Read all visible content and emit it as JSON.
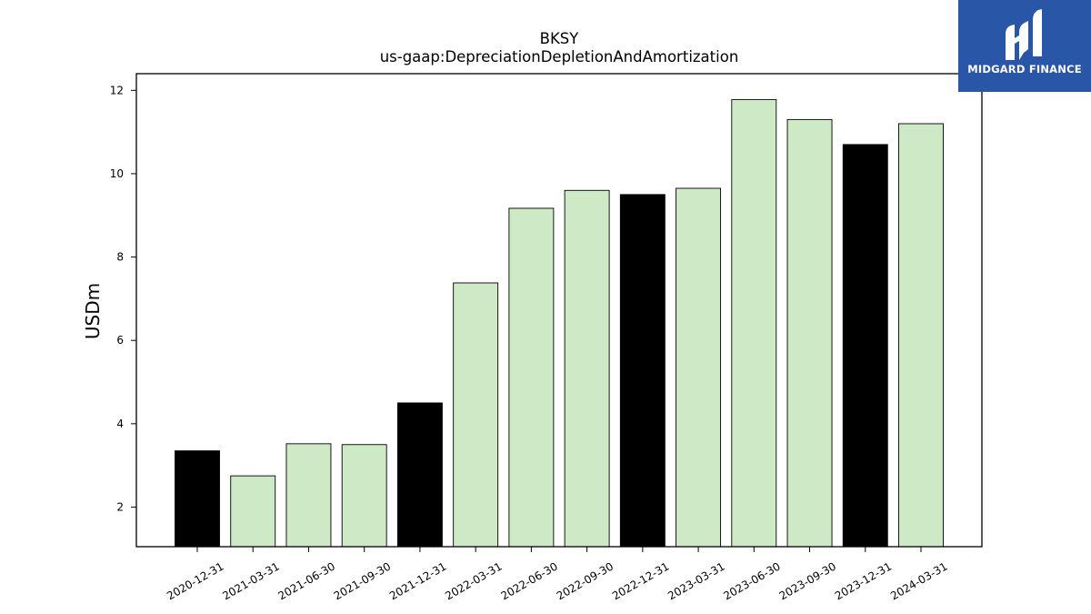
{
  "chart_data": {
    "type": "bar",
    "title": "BKSY",
    "subtitle": "us-gaap:DepreciationDepletionAndAmortization",
    "xlabel": "",
    "ylabel": "USDm",
    "categories": [
      "2020-12-31",
      "2021-03-31",
      "2021-06-30",
      "2021-09-30",
      "2021-12-31",
      "2022-03-31",
      "2022-06-30",
      "2022-09-30",
      "2022-12-31",
      "2023-03-31",
      "2023-06-30",
      "2023-09-30",
      "2023-12-31",
      "2024-03-31"
    ],
    "values": [
      3.35,
      2.75,
      3.52,
      3.5,
      4.5,
      7.38,
      9.17,
      9.6,
      9.5,
      9.65,
      11.78,
      11.3,
      10.7,
      11.2
    ],
    "bar_colors": [
      "#000000",
      "#cde9c5",
      "#cde9c5",
      "#cde9c5",
      "#000000",
      "#cde9c5",
      "#cde9c5",
      "#cde9c5",
      "#000000",
      "#cde9c5",
      "#cde9c5",
      "#cde9c5",
      "#000000",
      "#cde9c5"
    ],
    "bar_edge_color": "#000000",
    "ylim": [
      1.05,
      12.4
    ],
    "yticks": [
      2,
      4,
      6,
      8,
      10,
      12
    ],
    "grid": false,
    "legend": "none"
  },
  "logo": {
    "text": "MIDGARD FINANCE",
    "background": "#2a56a8",
    "icon": "midgard-m-icon"
  }
}
